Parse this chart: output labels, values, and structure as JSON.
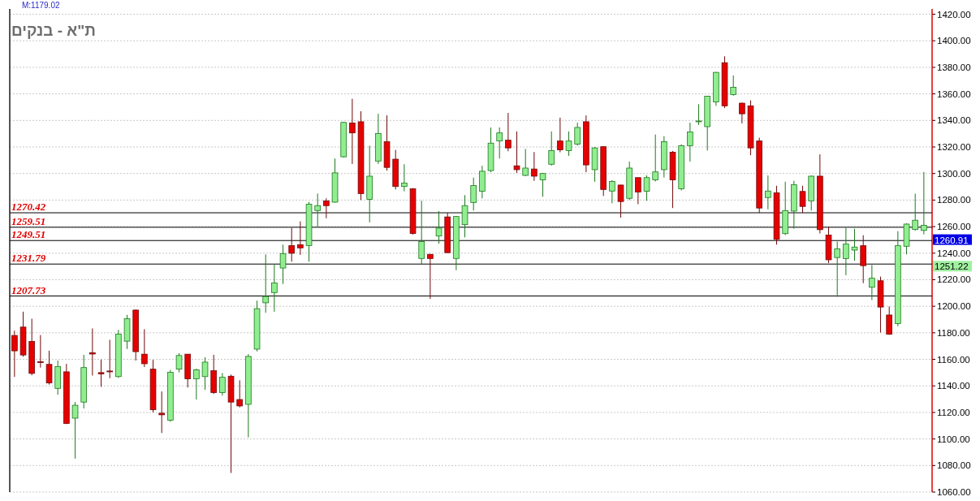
{
  "chart_data": {
    "type": "candlestick",
    "title": "ת\"א - בנקים",
    "categories": [
      null,
      null,
      null,
      null,
      null,
      null,
      null,
      null,
      null,
      null,
      null,
      null,
      null,
      null,
      null,
      null,
      null,
      null,
      null,
      null,
      null,
      null,
      null,
      null,
      null,
      null,
      null,
      null,
      null,
      null,
      null,
      null,
      null,
      null,
      null,
      null,
      null,
      null,
      null,
      null,
      null,
      null,
      null,
      null,
      null,
      null,
      null,
      null,
      null,
      null,
      null,
      null,
      null,
      null,
      null,
      null,
      null,
      null,
      null,
      null,
      null,
      null,
      null,
      null,
      null,
      null,
      null,
      null,
      null,
      null,
      null,
      null,
      null,
      null,
      null,
      null,
      null,
      null,
      null,
      null,
      null,
      null,
      null,
      null,
      null,
      null,
      null,
      null,
      null,
      null,
      null,
      null,
      null,
      null,
      null,
      null,
      null,
      null,
      null,
      null,
      null,
      null,
      null,
      null,
      null,
      null
    ],
    "ohlc": [
      [
        1178.0,
        1181.6,
        1146.8,
        1166.4
      ],
      [
        1184.3,
        1195.9,
        1162.0,
        1163.3
      ],
      [
        1173.5,
        1190.6,
        1148.0,
        1149.4
      ],
      [
        1158.2,
        1178.3,
        1153.8,
        1157.6
      ],
      [
        1156.2,
        1166.5,
        1141.0,
        1142.2
      ],
      [
        1138.1,
        1159.1,
        1133.3,
        1154.5
      ],
      [
        1150.6,
        1156.6,
        1111.2,
        1111.7
      ],
      [
        1115.7,
        1127.8,
        1085.2,
        1125.4
      ],
      [
        1127.8,
        1163.4,
        1123.0,
        1153.8
      ],
      [
        1165.0,
        1183.3,
        1147.8,
        1164.0
      ],
      [
        1150.0,
        1159.8,
        1139.3,
        1149.0
      ],
      [
        1151.2,
        1174.7,
        1145.8,
        1150.6
      ],
      [
        1147.0,
        1182.2,
        1146.0,
        1179.0
      ],
      [
        1173.7,
        1193.5,
        1167.8,
        1190.6
      ],
      [
        1197.1,
        1197.5,
        1159.1,
        1165.8
      ],
      [
        1163.9,
        1182.7,
        1154.2,
        1156.7
      ],
      [
        1152.6,
        1159.6,
        1120.0,
        1122.0
      ],
      [
        1119.4,
        1135.8,
        1104.5,
        1118.2
      ],
      [
        1114.1,
        1152.0,
        1113.0,
        1150.2
      ],
      [
        1152.6,
        1164.6,
        1150.2,
        1162.9
      ],
      [
        1163.9,
        1164.0,
        1138.8,
        1145.3
      ],
      [
        1145.3,
        1153.0,
        1129.7,
        1152.1
      ],
      [
        1147.0,
        1161.5,
        1137.0,
        1157.9
      ],
      [
        1151.4,
        1163.4,
        1134.0,
        1135.0
      ],
      [
        1135.0,
        1149.7,
        1132.7,
        1146.5
      ],
      [
        1147.3,
        1148.5,
        1074.4,
        1127.8
      ],
      [
        1129.7,
        1144.2,
        1123.8,
        1124.9
      ],
      [
        1126.1,
        1163.9,
        1101.3,
        1162.2
      ],
      [
        1167.7,
        1204.2,
        1166.0,
        1198.2
      ],
      [
        1202.6,
        1239.1,
        1195.1,
        1207.4
      ],
      [
        1210.3,
        1231.9,
        1195.9,
        1217.5
      ],
      [
        1228.8,
        1246.4,
        1216.8,
        1239.7
      ],
      [
        1245.7,
        1259.1,
        1233.6,
        1239.9
      ],
      [
        1246.4,
        1264.0,
        1238.7,
        1244.0
      ],
      [
        1245.7,
        1278.6,
        1233.6,
        1276.9
      ],
      [
        1272.1,
        1284.9,
        1260.1,
        1275.8
      ],
      [
        1279.4,
        1281.3,
        1266.3,
        1275.8
      ],
      [
        1278.4,
        1311.3,
        1278.0,
        1300.5
      ],
      [
        1312.6,
        1339.0,
        1312.0,
        1338.5
      ],
      [
        1338.0,
        1356.3,
        1307.2,
        1330.6
      ],
      [
        1339.0,
        1346.9,
        1280.0,
        1284.9
      ],
      [
        1280.5,
        1321.0,
        1263.2,
        1298.0
      ],
      [
        1309.4,
        1345.0,
        1307.2,
        1330.1
      ],
      [
        1324.0,
        1343.8,
        1302.2,
        1304.6
      ],
      [
        1310.8,
        1317.8,
        1288.0,
        1290.2
      ],
      [
        1290.2,
        1307.0,
        1286.6,
        1292.8
      ],
      [
        1288.5,
        1289.0,
        1254.0,
        1254.8
      ],
      [
        1236.0,
        1279.5,
        1231.2,
        1248.8
      ],
      [
        1239.1,
        1239.5,
        1205.5,
        1236.0
      ],
      [
        1252.9,
        1271.7,
        1247.1,
        1258.9
      ],
      [
        1267.3,
        1270.4,
        1240.0,
        1240.4
      ],
      [
        1236.0,
        1268.0,
        1227.2,
        1267.6
      ],
      [
        1261.5,
        1283.7,
        1251.9,
        1275.8
      ],
      [
        1278.2,
        1296.9,
        1272.1,
        1290.9
      ],
      [
        1286.6,
        1305.8,
        1281.3,
        1301.7
      ],
      [
        1302.2,
        1334.7,
        1301.0,
        1322.9
      ],
      [
        1324.5,
        1334.7,
        1311.3,
        1330.6
      ],
      [
        1325.1,
        1345.7,
        1316.8,
        1319.3
      ],
      [
        1305.8,
        1331.7,
        1300.5,
        1302.9
      ],
      [
        1298.6,
        1318.5,
        1298.0,
        1304.1
      ],
      [
        1303.4,
        1316.2,
        1294.5,
        1298.0
      ],
      [
        1295.2,
        1300.5,
        1282.5,
        1300.0
      ],
      [
        1307.0,
        1331.7,
        1306.0,
        1317.3
      ],
      [
        1324.5,
        1342.1,
        1316.0,
        1317.8
      ],
      [
        1317.3,
        1331.7,
        1313.3,
        1324.5
      ],
      [
        1322.1,
        1338.3,
        1321.0,
        1334.7
      ],
      [
        1339.0,
        1343.8,
        1301.0,
        1306.5
      ],
      [
        1302.9,
        1320.0,
        1293.8,
        1319.3
      ],
      [
        1320.2,
        1320.5,
        1283.1,
        1288.0
      ],
      [
        1286.8,
        1295.0,
        1277.6,
        1294.0
      ],
      [
        1291.3,
        1291.5,
        1266.8,
        1278.9
      ],
      [
        1281.3,
        1309.0,
        1280.0,
        1304.1
      ],
      [
        1296.9,
        1297.0,
        1276.9,
        1286.1
      ],
      [
        1286.6,
        1298.6,
        1279.4,
        1296.9
      ],
      [
        1295.2,
        1329.4,
        1294.0,
        1301.2
      ],
      [
        1302.9,
        1328.1,
        1297.0,
        1324.0
      ],
      [
        1316.1,
        1317.0,
        1274.0,
        1295.2
      ],
      [
        1288.5,
        1322.0,
        1287.3,
        1321.0
      ],
      [
        1321.0,
        1338.3,
        1309.0,
        1331.3
      ],
      [
        1339.5,
        1352.2,
        1336.6,
        1339.6
      ],
      [
        1335.3,
        1358.5,
        1317.3,
        1358.2
      ],
      [
        1353.9,
        1376.5,
        1351.0,
        1376.2
      ],
      [
        1383.5,
        1388.3,
        1349.3,
        1351.0
      ],
      [
        1359.4,
        1373.9,
        1358.6,
        1365.0
      ],
      [
        1353.0,
        1353.5,
        1337.8,
        1345.0
      ],
      [
        1351.0,
        1355.1,
        1313.8,
        1319.3
      ],
      [
        1324.5,
        1327.0,
        1270.4,
        1274.0
      ],
      [
        1281.9,
        1298.6,
        1273.0,
        1286.8
      ],
      [
        1285.5,
        1290.8,
        1246.4,
        1250.4
      ],
      [
        1254.7,
        1293.8,
        1253.6,
        1272.1
      ],
      [
        1271.7,
        1294.5,
        1258.4,
        1291.5
      ],
      [
        1286.5,
        1290.8,
        1270.4,
        1275.2
      ],
      [
        1279.4,
        1298.5,
        1272.1,
        1298.0
      ],
      [
        1298.0,
        1314.4,
        1254.8,
        1257.7
      ],
      [
        1253.6,
        1259.6,
        1232.6,
        1235.0
      ],
      [
        1236.7,
        1248.7,
        1207.1,
        1243.2
      ],
      [
        1235.9,
        1259.1,
        1223.4,
        1246.8
      ],
      [
        1242.3,
        1258.4,
        1234.3,
        1244.6
      ],
      [
        1245.6,
        1253.5,
        1217.4,
        1230.6
      ],
      [
        1214.3,
        1231.1,
        1204.7,
        1221.1
      ],
      [
        1219.2,
        1222.3,
        1180.2,
        1199.4
      ],
      [
        1193.4,
        1199.8,
        1178.5,
        1178.9
      ],
      [
        1186.9,
        1256.6,
        1184.9,
        1245.6
      ],
      [
        1245.2,
        1262.5,
        1239.1,
        1261.9
      ],
      [
        1257.8,
        1284.8,
        1257.0,
        1264.8
      ],
      [
        1257.1,
        1301.2,
        1254.2,
        1260.91
      ]
    ],
    "ylim": [
      1060,
      1424
    ],
    "yticks": [
      {
        "value": 1060,
        "label": "1060.00"
      },
      {
        "value": 1080,
        "label": "1080.00"
      },
      {
        "value": 1100,
        "label": "1100.00"
      },
      {
        "value": 1120,
        "label": "1120.00"
      },
      {
        "value": 1140,
        "label": "1140.00"
      },
      {
        "value": 1160,
        "label": "1160.00"
      },
      {
        "value": 1180,
        "label": "1180.00"
      },
      {
        "value": 1200,
        "label": "1200.00"
      },
      {
        "value": 1220,
        "label": "1220.00"
      },
      {
        "value": 1240,
        "label": "1240.00"
      },
      {
        "value": 1260,
        "label": "1260.00"
      },
      {
        "value": 1280,
        "label": "1280.00"
      },
      {
        "value": 1300,
        "label": "1300.00"
      },
      {
        "value": 1320,
        "label": "1320.00"
      },
      {
        "value": 1340,
        "label": "1340.00"
      },
      {
        "value": 1360,
        "label": "1360.00"
      },
      {
        "value": 1380,
        "label": "1380.00"
      },
      {
        "value": 1400,
        "label": "1400.00"
      },
      {
        "value": 1420,
        "label": "1420.00"
      }
    ],
    "ref_lines": [
      {
        "axis": "y",
        "value": 1270.42,
        "label": "1270.42",
        "color": "#000000"
      },
      {
        "axis": "y",
        "value": 1259.51,
        "label": "1259.51",
        "color": "#000000"
      },
      {
        "axis": "y",
        "value": 1249.51,
        "label": "1249.51",
        "color": "#000000"
      },
      {
        "axis": "y",
        "value": 1231.79,
        "label": "1231.79",
        "color": "#000000"
      },
      {
        "axis": "y",
        "value": 1207.73,
        "label": "1207.73",
        "color": "#000000"
      }
    ],
    "annotations": [
      "M:1179.02",
      "1260.91",
      "1251.22"
    ],
    "grid": "y",
    "tick_labels": "y"
  }
}
